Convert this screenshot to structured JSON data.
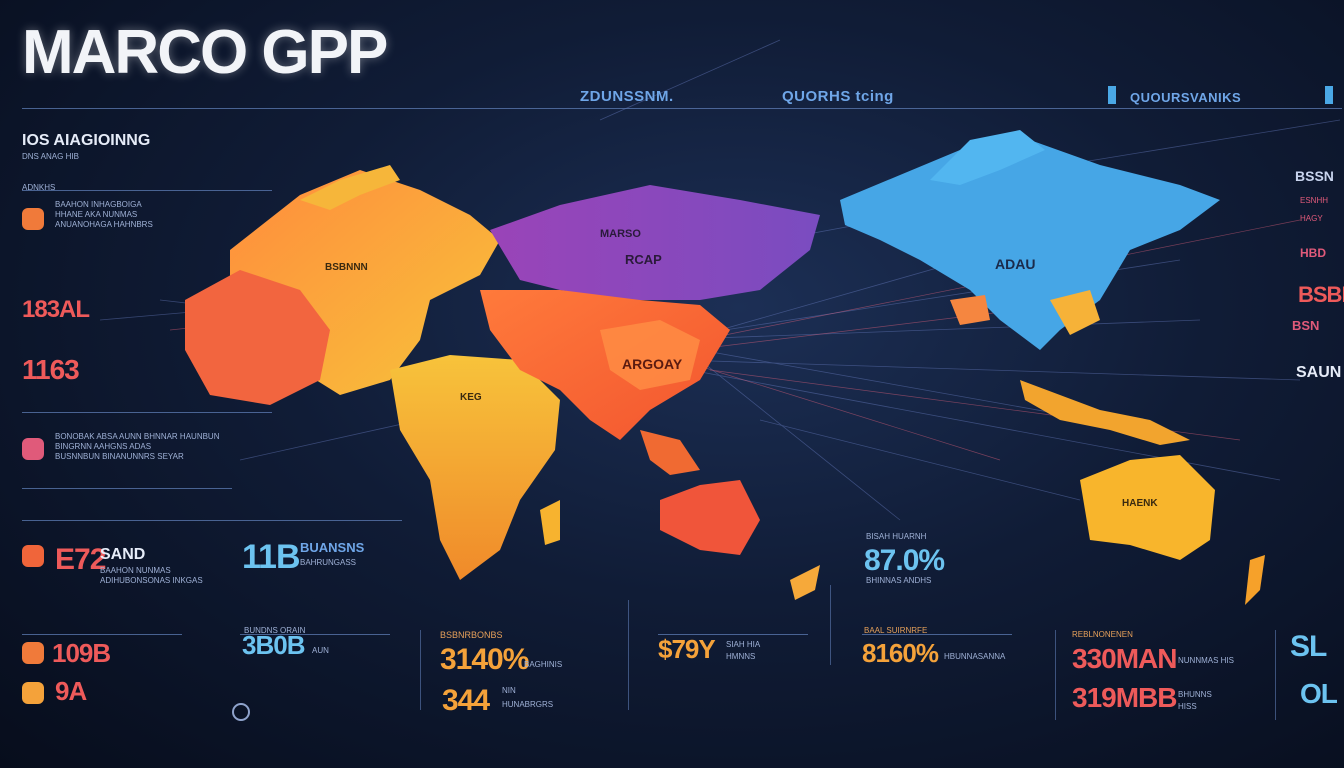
{
  "header": {
    "title": "MARCO GPP",
    "top_labels": [
      "ZDUNSSNM.",
      "QUORHS tcing",
      "QUOURSVANIKS"
    ]
  },
  "left_panel": {
    "heading": "IOS AIAGIOINNG",
    "subheading": "DNS ANAG HIB",
    "line1": "ADNKHS",
    "block1": "BAAHON INHAGBOIGA\nHHANE AKA NUNMAS\nANUANOHAGA HAHNBRS",
    "stat1": "183AL",
    "stat2": "1163",
    "block2": "BONOBAK ABSA AUNN BHNNAR HAUNBUN\nBINGRNN AAHGNS ADAS\nBUSNNBUN BINANUNNRS SEYAR",
    "stat3": "E72",
    "stat3_text": "SAND",
    "block3": "BAAHON NUNMAS\nADIHUBONSONAS INKGAS",
    "stat4": "109B",
    "stat5": "9A"
  },
  "map_labels": {
    "europe": "MARSO",
    "russia": "RCAP",
    "china": "ARGOAY",
    "americas": "ADAU",
    "west": "BSBNNN",
    "africa": "KEG",
    "australia": "HAENK"
  },
  "bottom_stats": [
    {
      "value": "11B",
      "label": "BUANSNS",
      "sub": "BAHRUNGASS"
    },
    {
      "value": "3B0B",
      "label": "BUNDNS ORAIN",
      "sub": "AUN"
    },
    {
      "value": "3140%",
      "label": "BSBNRBONBS",
      "sub": "BAGHINIS"
    },
    {
      "value": "344",
      "label": "NIN",
      "sub": "HUNABRGRS"
    },
    {
      "value": "$79Y",
      "label": "SIAH HIA",
      "sub": "HMNNS"
    },
    {
      "value": "87.0%",
      "label": "BISAH HUARNH",
      "sub": "BHINNAS ANDHS"
    },
    {
      "value": "8160%",
      "label": "BAAL SUIRNRFE",
      "sub": "HBUNNASANNA"
    },
    {
      "value": "330MAN",
      "label": "REBLNONENEN",
      "sub": "NUNNMAS HIS"
    },
    {
      "value": "319MBB",
      "label": "BHUNNS",
      "sub": "HISS"
    }
  ],
  "right_panel": {
    "r1": "BSSN",
    "r2": "ESNHH",
    "r3": "HAGY",
    "r4": "HBD",
    "r5": "BSBN",
    "r6": "BSN",
    "r7": "SAUN",
    "r8": "SL",
    "r9": "OL"
  },
  "colors": {
    "bg": "#0a1428",
    "accent_red": "#ee5a5a",
    "accent_orange": "#f4a23a",
    "accent_blue": "#6cc3f0",
    "map_orange": "#f5894a",
    "map_yellow": "#f8b834",
    "map_purple": "#8a4fb8",
    "map_cyan": "#4aa8e6"
  }
}
